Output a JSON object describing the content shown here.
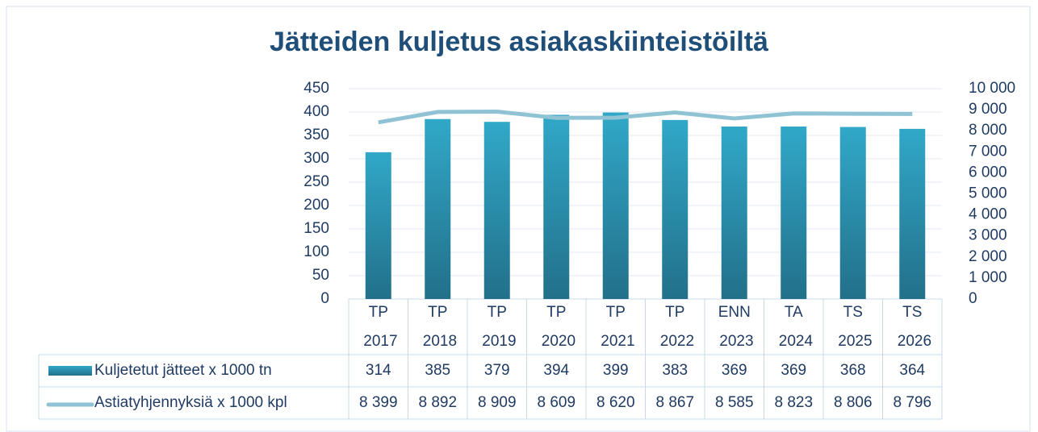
{
  "chart_data": {
    "type": "bar-line-table",
    "title": "Jätteiden kuljetus asiakaskiinteistöiltä",
    "categories": [
      "TP 2017",
      "TP 2018",
      "TP 2019",
      "TP 2020",
      "TP 2021",
      "TP 2022",
      "ENN 2023",
      "TA 2024",
      "TS 2025",
      "TS 2026"
    ],
    "series": [
      {
        "name": "Kuljetetut jätteet x 1000 tn",
        "type": "bar",
        "color": "#2a8aa6",
        "values": [
          314,
          385,
          379,
          394,
          399,
          383,
          369,
          369,
          368,
          364
        ]
      },
      {
        "name": "Astiatyhjennyksiä x 1000 kpl",
        "type": "line",
        "axis": "y2",
        "color": "#8fc3d4",
        "values": [
          8399,
          8892,
          8909,
          8609,
          8620,
          8867,
          8585,
          8823,
          8806,
          8796
        ],
        "value_labels": [
          "8 399",
          "8 892",
          "8 909",
          "8 609",
          "8 620",
          "8 867",
          "8 585",
          "8 823",
          "8 806",
          "8 796"
        ]
      }
    ],
    "ylim": [
      0,
      450
    ],
    "yticks": [
      0,
      50,
      100,
      150,
      200,
      250,
      300,
      350,
      400,
      450
    ],
    "y2lim": [
      0,
      10000
    ],
    "y2ticks": [
      0,
      {
        "value": 1000,
        "label": "1 000"
      },
      {
        "value": 2000,
        "label": "2 000"
      },
      {
        "value": 3000,
        "label": "3 000"
      },
      {
        "value": 4000,
        "label": "4 000"
      },
      {
        "value": 5000,
        "label": "5 000"
      },
      {
        "value": 6000,
        "label": "6 000"
      },
      {
        "value": 7000,
        "label": "7 000"
      },
      {
        "value": 8000,
        "label": "8 000"
      },
      {
        "value": 9000,
        "label": "9 000"
      },
      {
        "value": 10000,
        "label": "10 000"
      }
    ],
    "grid": true,
    "data_table": true
  }
}
